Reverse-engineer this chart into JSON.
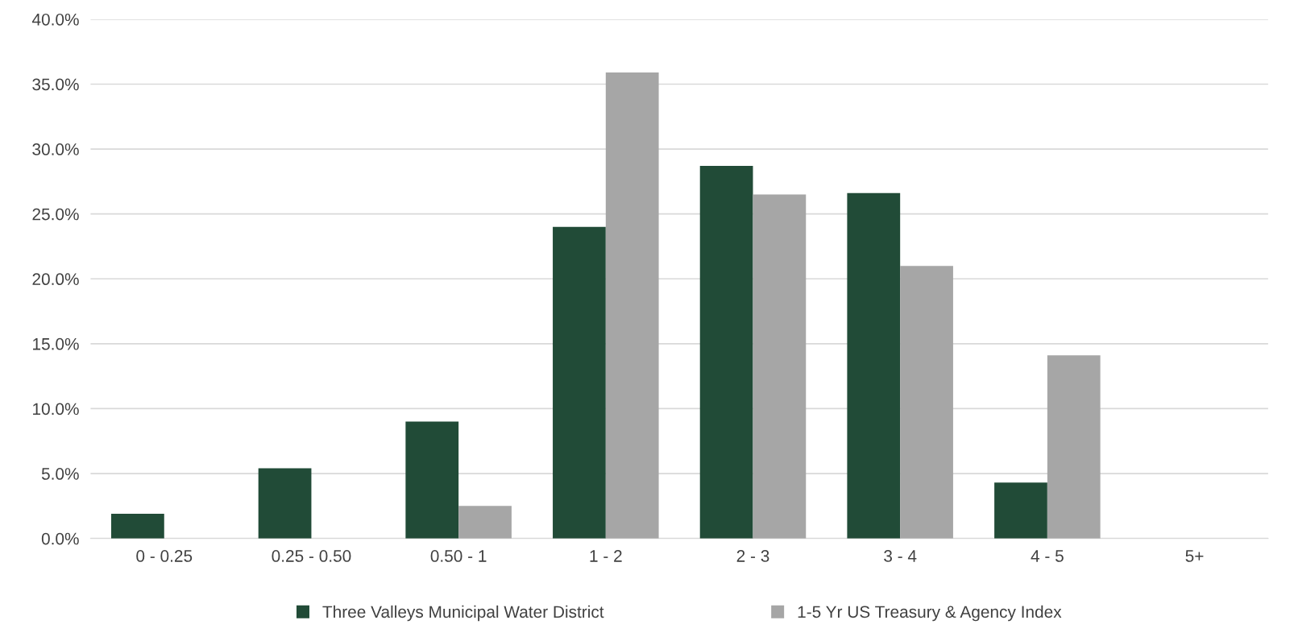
{
  "chart_data": {
    "type": "bar",
    "categories": [
      "0 - 0.25",
      "0.25 - 0.50",
      "0.50 - 1",
      "1 - 2",
      "2 - 3",
      "3 - 4",
      "4 - 5",
      "5+"
    ],
    "series": [
      {
        "name": "Three Valleys Municipal Water District",
        "color": "#214b37",
        "values": [
          1.9,
          5.4,
          9.0,
          24.0,
          28.7,
          26.6,
          4.3,
          0
        ]
      },
      {
        "name": "1-5 Yr US Treasury & Agency Index",
        "color": "#a6a6a6",
        "values": [
          0,
          0,
          2.5,
          35.9,
          26.5,
          21.0,
          14.1,
          0
        ]
      }
    ],
    "ylim": [
      0,
      40
    ],
    "yticks": [
      {
        "value": 0,
        "label": "0.0%"
      },
      {
        "value": 5,
        "label": "5.0%"
      },
      {
        "value": 10,
        "label": "10.0%"
      },
      {
        "value": 15,
        "label": "15.0%"
      },
      {
        "value": 20,
        "label": "20.0%"
      },
      {
        "value": 25,
        "label": "25.0%"
      },
      {
        "value": 30,
        "label": "30.0%"
      },
      {
        "value": 35,
        "label": "35.0%"
      },
      {
        "value": 40,
        "label": "40.0%"
      }
    ],
    "grid": "y",
    "legend": "bottom"
  }
}
